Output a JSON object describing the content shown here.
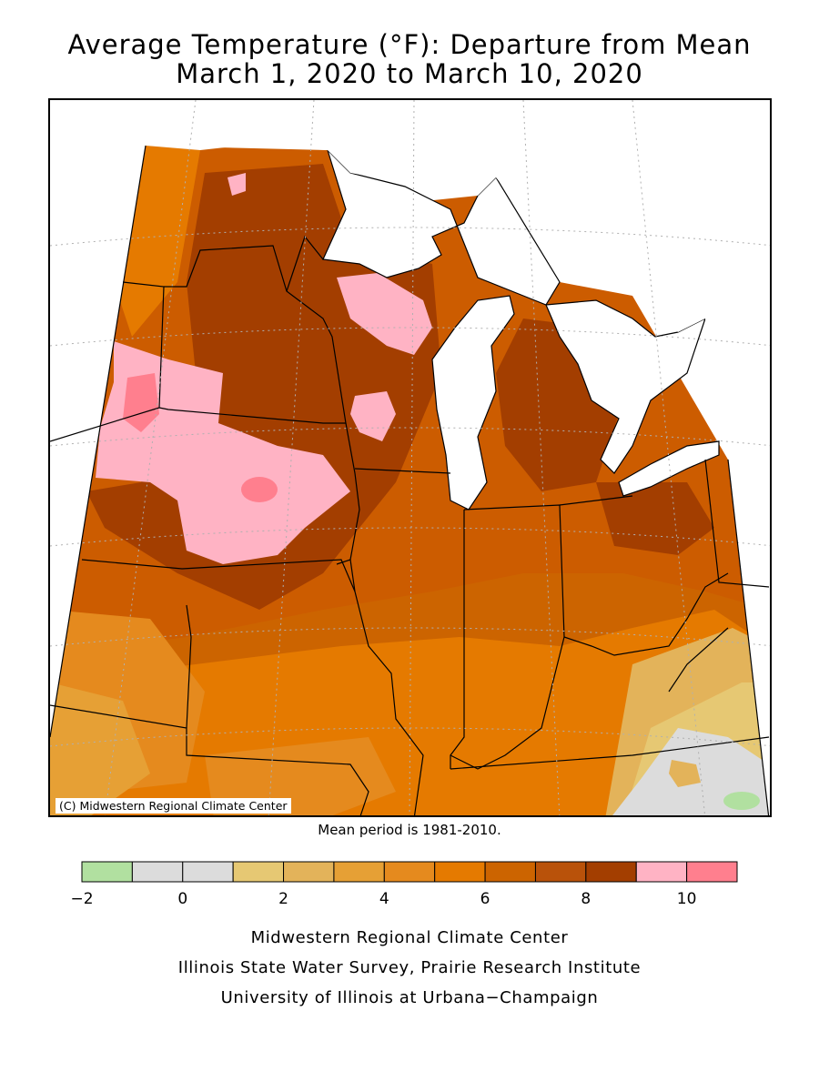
{
  "title": {
    "line1": "Average Temperature (°F): Departure from Mean",
    "line2": "March 1, 2020 to March 10, 2020"
  },
  "map": {
    "copyright": "(C) Midwestern Regional Climate Center",
    "mean_note": "Mean period is 1981-2010.",
    "land_base_color": "#cc5c00",
    "water_color": "#ffffff"
  },
  "legend": {
    "bins": [
      {
        "from": -2,
        "to": -1,
        "color": "#b1e0a0"
      },
      {
        "from": -1,
        "to": 0,
        "color": "#dcdcdc"
      },
      {
        "from": 0,
        "to": 1,
        "color": "#dcdcdc"
      },
      {
        "from": 1,
        "to": 2,
        "color": "#e6c873"
      },
      {
        "from": 2,
        "to": 3,
        "color": "#e3b35a"
      },
      {
        "from": 3,
        "to": 4,
        "color": "#e6a035"
      },
      {
        "from": 4,
        "to": 5,
        "color": "#e58a1e"
      },
      {
        "from": 5,
        "to": 6,
        "color": "#e57a00"
      },
      {
        "from": 6,
        "to": 7,
        "color": "#cc6400"
      },
      {
        "from": 7,
        "to": 8,
        "color": "#b9520a"
      },
      {
        "from": 8,
        "to": 9,
        "color": "#a33e00"
      },
      {
        "from": 9,
        "to": 10,
        "color": "#ffb3c4"
      },
      {
        "from": 10,
        "to": 11,
        "color": "#ff7f8e"
      }
    ],
    "tick_labels": [
      "−2",
      "0",
      "2",
      "4",
      "6",
      "8",
      "10"
    ]
  },
  "credits": {
    "line1": "Midwestern Regional Climate Center",
    "line2": "Illinois State Water Survey, Prairie Research Institute",
    "line3": "University of Illinois at Urbana−Champaign"
  }
}
